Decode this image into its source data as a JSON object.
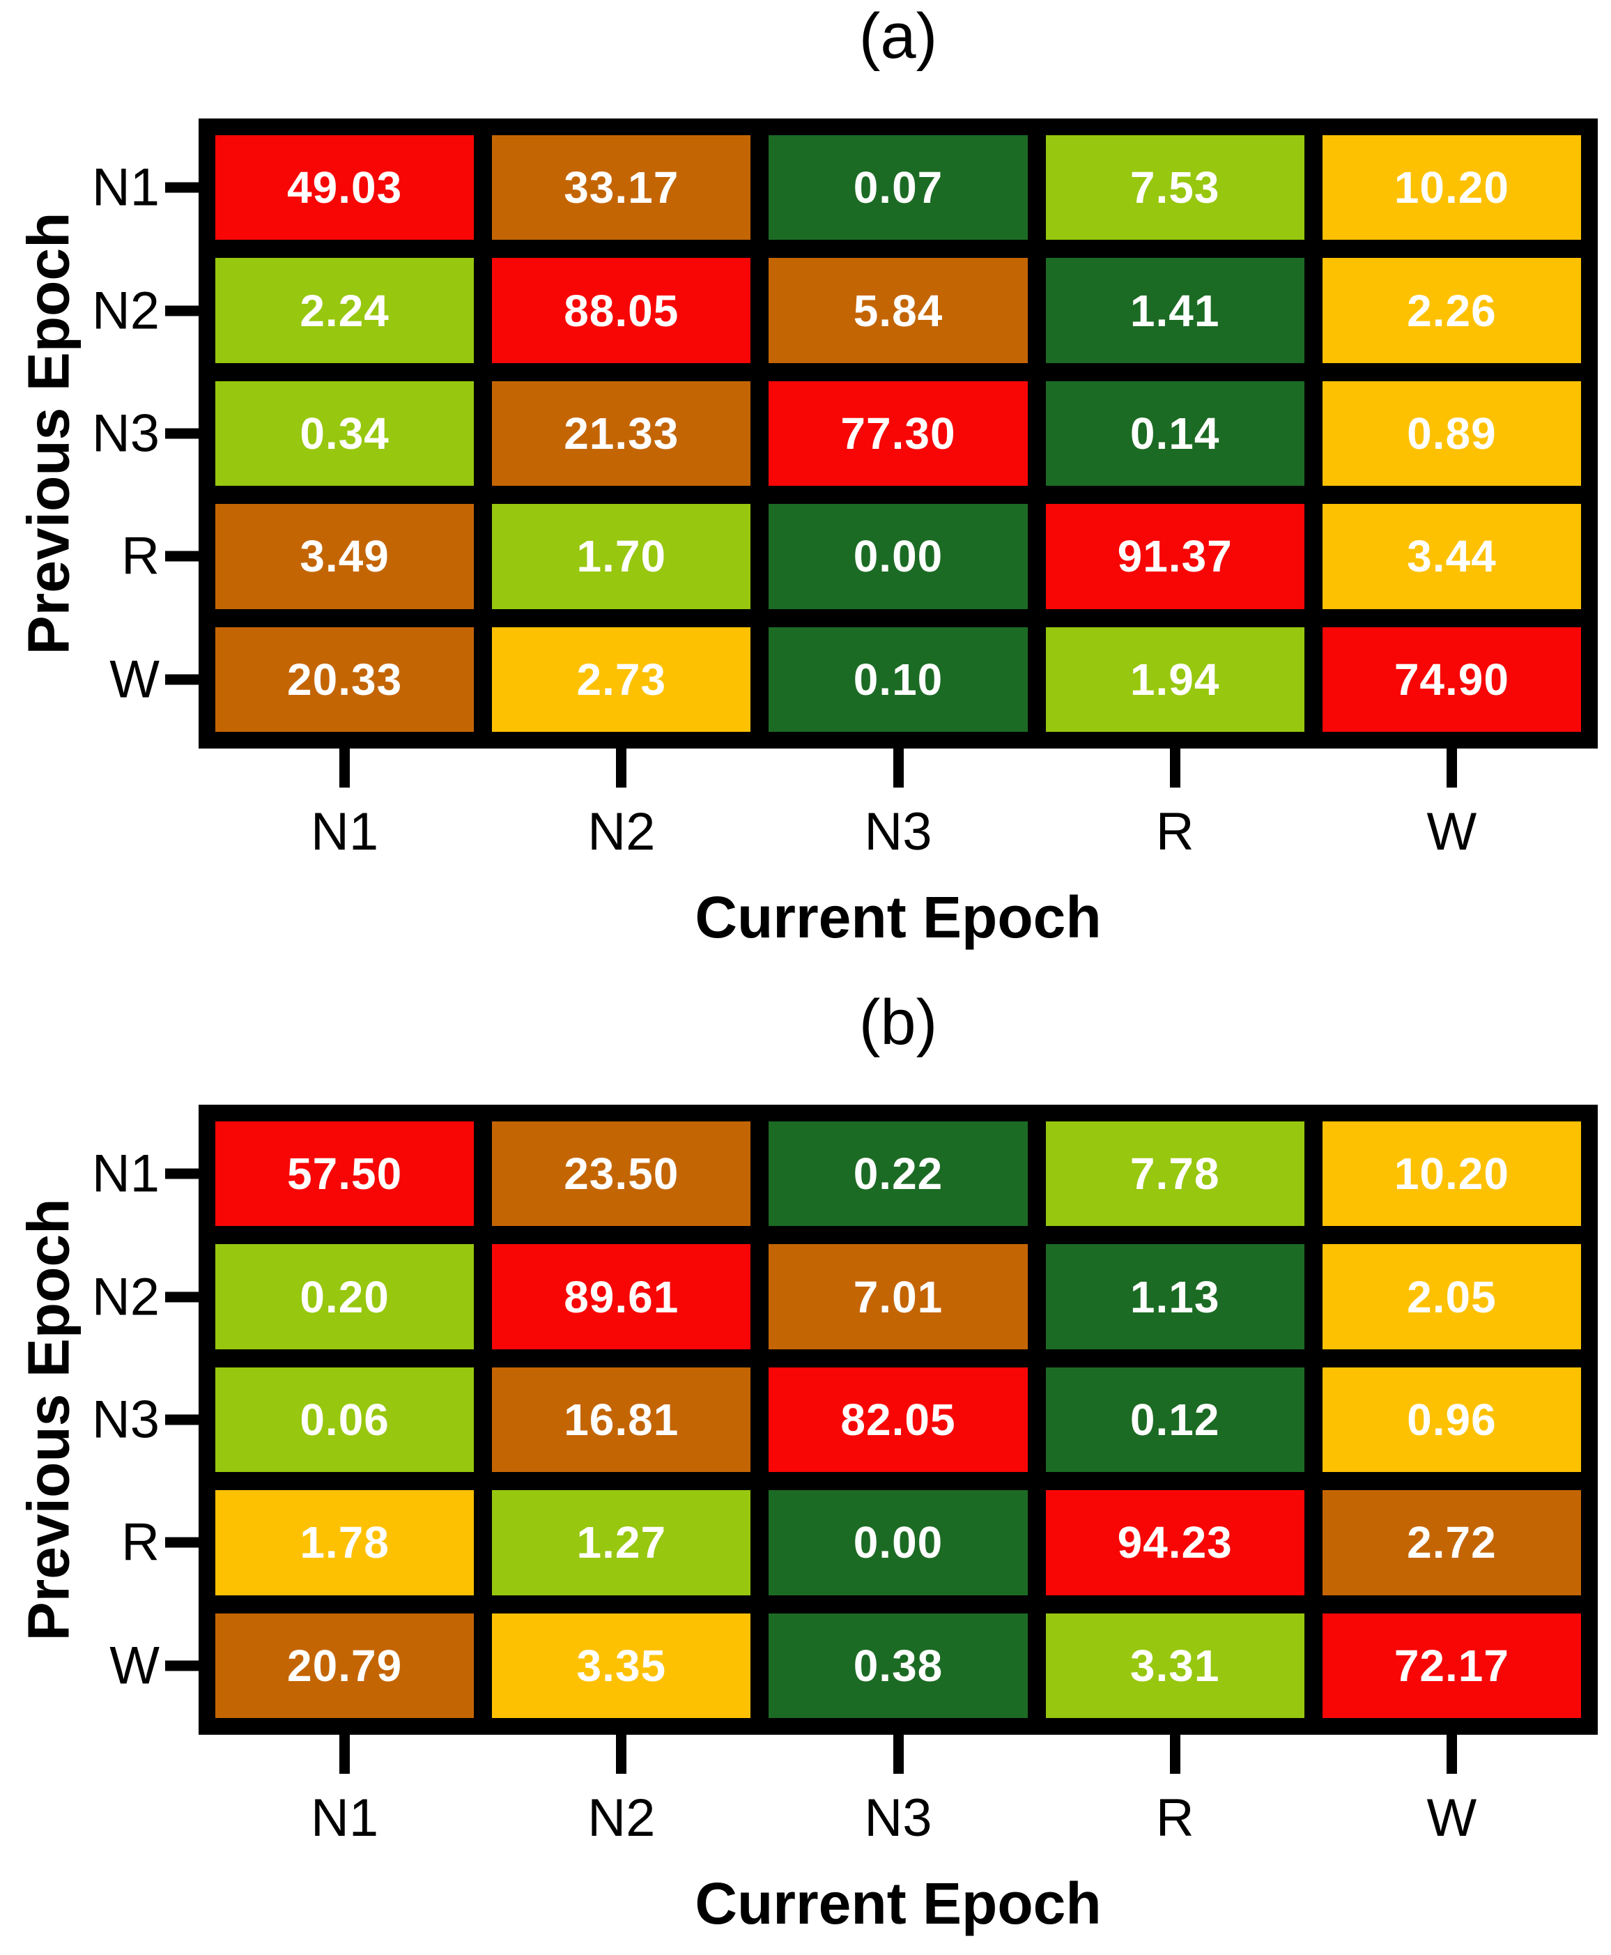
{
  "colors": {
    "red": "#F80606",
    "brown": "#C46504",
    "dark_green": "#1C6B24",
    "light_green": "#97C70E",
    "gold": "#FEC101",
    "grid_border": "#000000",
    "value_text": "#FFFFFF"
  },
  "panels": [
    {
      "title": "(a)",
      "x_axis_label": "Current Epoch",
      "y_axis_label": "Previous Epoch",
      "col_labels": [
        "N1",
        "N2",
        "N3",
        "R",
        "W"
      ],
      "row_labels": [
        "N1",
        "N2",
        "N3",
        "R",
        "W"
      ],
      "rows": [
        {
          "label": "N1",
          "cells": [
            {
              "value": "49.03",
              "color": "red"
            },
            {
              "value": "33.17",
              "color": "brown"
            },
            {
              "value": "0.07",
              "color": "dark_green"
            },
            {
              "value": "7.53",
              "color": "light_green"
            },
            {
              "value": "10.20",
              "color": "gold"
            }
          ]
        },
        {
          "label": "N2",
          "cells": [
            {
              "value": "2.24",
              "color": "light_green"
            },
            {
              "value": "88.05",
              "color": "red"
            },
            {
              "value": "5.84",
              "color": "brown"
            },
            {
              "value": "1.41",
              "color": "dark_green"
            },
            {
              "value": "2.26",
              "color": "gold"
            }
          ]
        },
        {
          "label": "N3",
          "cells": [
            {
              "value": "0.34",
              "color": "light_green"
            },
            {
              "value": "21.33",
              "color": "brown"
            },
            {
              "value": "77.30",
              "color": "red"
            },
            {
              "value": "0.14",
              "color": "dark_green"
            },
            {
              "value": "0.89",
              "color": "gold"
            }
          ]
        },
        {
          "label": "R",
          "cells": [
            {
              "value": "3.49",
              "color": "brown"
            },
            {
              "value": "1.70",
              "color": "light_green"
            },
            {
              "value": "0.00",
              "color": "dark_green"
            },
            {
              "value": "91.37",
              "color": "red"
            },
            {
              "value": "3.44",
              "color": "gold"
            }
          ]
        },
        {
          "label": "W",
          "cells": [
            {
              "value": "20.33",
              "color": "brown"
            },
            {
              "value": "2.73",
              "color": "gold"
            },
            {
              "value": "0.10",
              "color": "dark_green"
            },
            {
              "value": "1.94",
              "color": "light_green"
            },
            {
              "value": "74.90",
              "color": "red"
            }
          ]
        }
      ]
    },
    {
      "title": "(b)",
      "x_axis_label": "Current Epoch",
      "y_axis_label": "Previous Epoch",
      "col_labels": [
        "N1",
        "N2",
        "N3",
        "R",
        "W"
      ],
      "row_labels": [
        "N1",
        "N2",
        "N3",
        "R",
        "W"
      ],
      "rows": [
        {
          "label": "N1",
          "cells": [
            {
              "value": "57.50",
              "color": "red"
            },
            {
              "value": "23.50",
              "color": "brown"
            },
            {
              "value": "0.22",
              "color": "dark_green"
            },
            {
              "value": "7.78",
              "color": "light_green"
            },
            {
              "value": "10.20",
              "color": "gold"
            }
          ]
        },
        {
          "label": "N2",
          "cells": [
            {
              "value": "0.20",
              "color": "light_green"
            },
            {
              "value": "89.61",
              "color": "red"
            },
            {
              "value": "7.01",
              "color": "brown"
            },
            {
              "value": "1.13",
              "color": "dark_green"
            },
            {
              "value": "2.05",
              "color": "gold"
            }
          ]
        },
        {
          "label": "N3",
          "cells": [
            {
              "value": "0.06",
              "color": "light_green"
            },
            {
              "value": "16.81",
              "color": "brown"
            },
            {
              "value": "82.05",
              "color": "red"
            },
            {
              "value": "0.12",
              "color": "dark_green"
            },
            {
              "value": "0.96",
              "color": "gold"
            }
          ]
        },
        {
          "label": "R",
          "cells": [
            {
              "value": "1.78",
              "color": "gold"
            },
            {
              "value": "1.27",
              "color": "light_green"
            },
            {
              "value": "0.00",
              "color": "dark_green"
            },
            {
              "value": "94.23",
              "color": "red"
            },
            {
              "value": "2.72",
              "color": "brown"
            }
          ]
        },
        {
          "label": "W",
          "cells": [
            {
              "value": "20.79",
              "color": "brown"
            },
            {
              "value": "3.35",
              "color": "gold"
            },
            {
              "value": "0.38",
              "color": "dark_green"
            },
            {
              "value": "3.31",
              "color": "light_green"
            },
            {
              "value": "72.17",
              "color": "red"
            }
          ]
        }
      ]
    }
  ],
  "chart_data": [
    {
      "type": "heatmap",
      "title": "(a)",
      "xlabel": "Current Epoch",
      "ylabel": "Previous Epoch",
      "x_categories": [
        "N1",
        "N2",
        "N3",
        "R",
        "W"
      ],
      "y_categories": [
        "N1",
        "N2",
        "N3",
        "R",
        "W"
      ],
      "values": [
        [
          49.03,
          33.17,
          0.07,
          7.53,
          10.2
        ],
        [
          2.24,
          88.05,
          5.84,
          1.41,
          2.26
        ],
        [
          0.34,
          21.33,
          77.3,
          0.14,
          0.89
        ],
        [
          3.49,
          1.7,
          0.0,
          91.37,
          3.44
        ],
        [
          20.33,
          2.73,
          0.1,
          1.94,
          74.9
        ]
      ],
      "value_unit": "percent",
      "legend": "none",
      "cell_color_scale": [
        "dark_green",
        "light_green",
        "gold",
        "brown",
        "red"
      ]
    },
    {
      "type": "heatmap",
      "title": "(b)",
      "xlabel": "Current Epoch",
      "ylabel": "Previous Epoch",
      "x_categories": [
        "N1",
        "N2",
        "N3",
        "R",
        "W"
      ],
      "y_categories": [
        "N1",
        "N2",
        "N3",
        "R",
        "W"
      ],
      "values": [
        [
          57.5,
          23.5,
          0.22,
          7.78,
          10.2
        ],
        [
          0.2,
          89.61,
          7.01,
          1.13,
          2.05
        ],
        [
          0.06,
          16.81,
          82.05,
          0.12,
          0.96
        ],
        [
          1.78,
          1.27,
          0.0,
          94.23,
          2.72
        ],
        [
          20.79,
          3.35,
          0.38,
          3.31,
          72.17
        ]
      ],
      "value_unit": "percent",
      "legend": "none",
      "cell_color_scale": [
        "dark_green",
        "light_green",
        "gold",
        "brown",
        "red"
      ]
    }
  ]
}
